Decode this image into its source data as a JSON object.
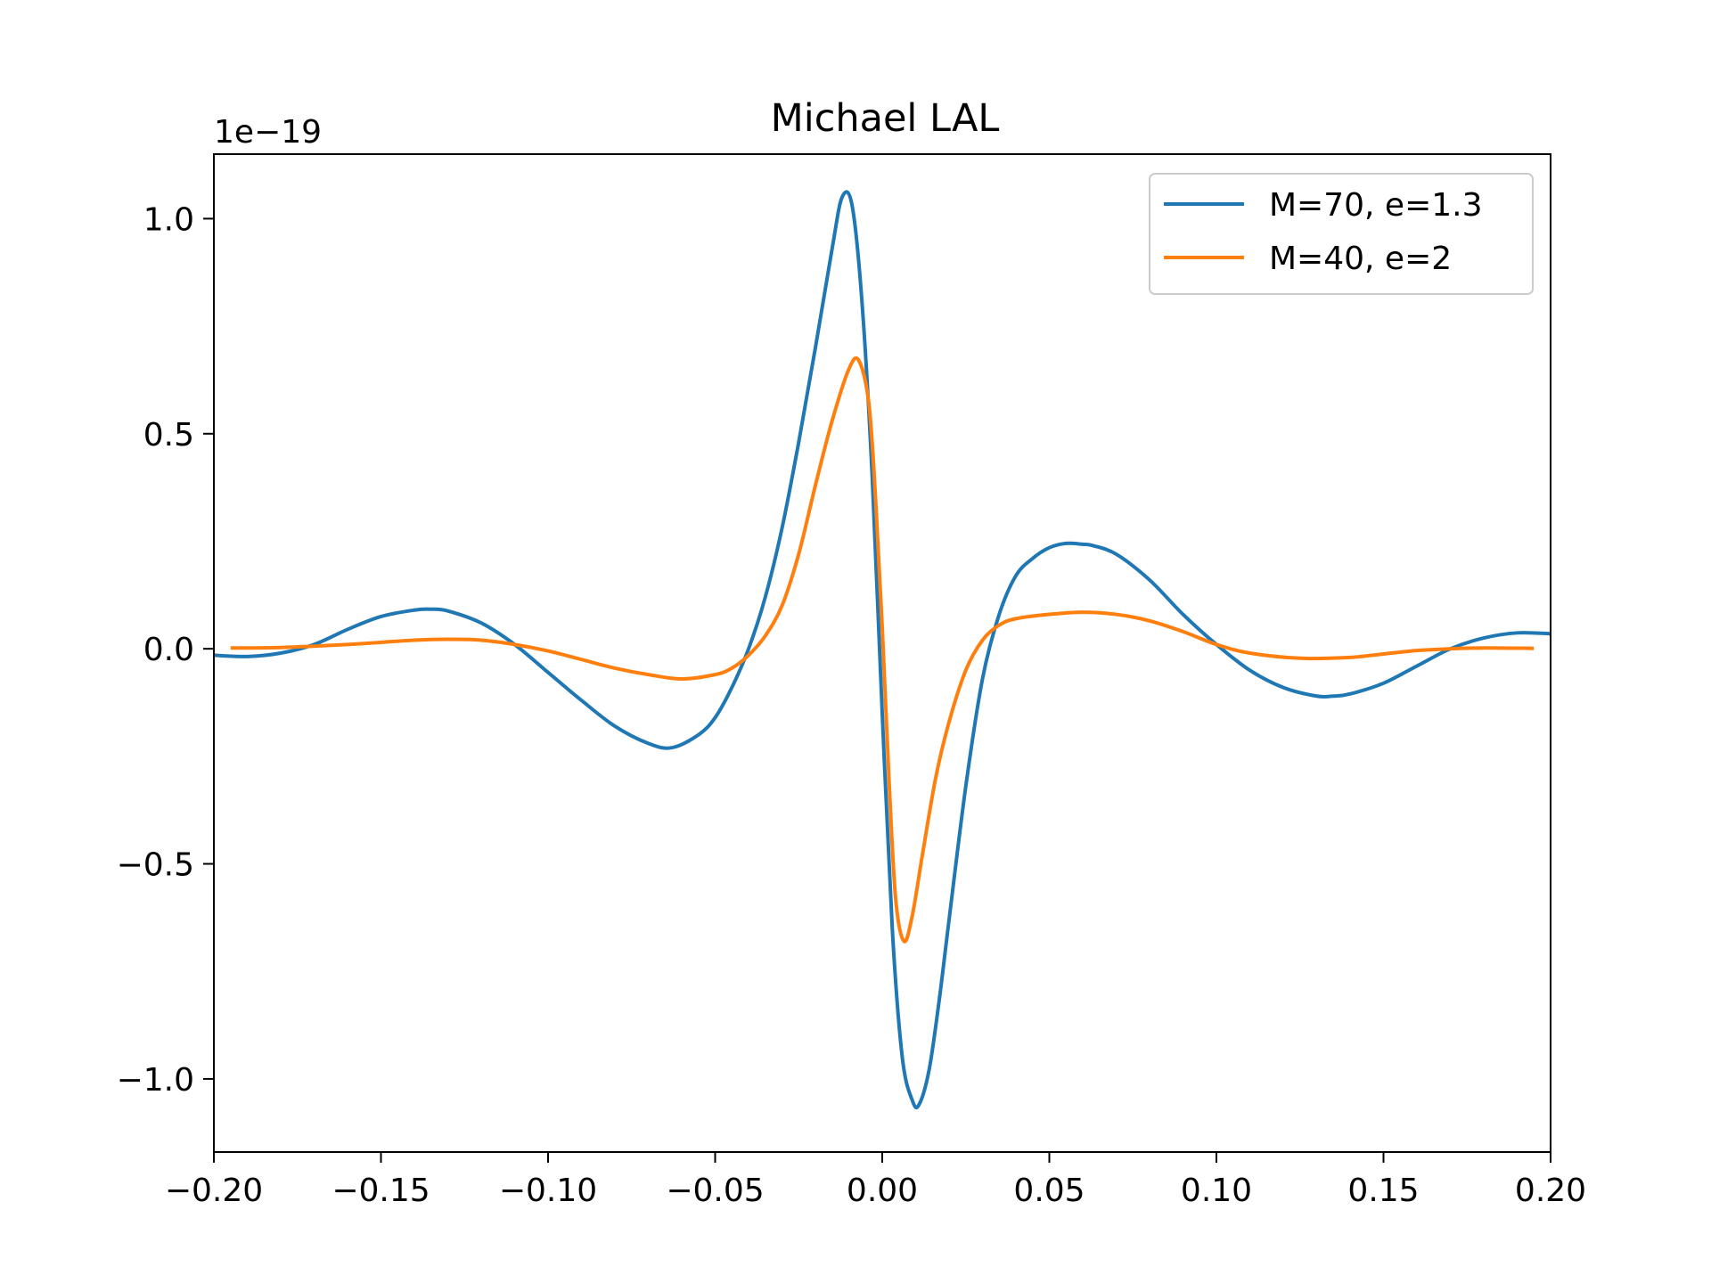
{
  "chart_data": {
    "type": "line",
    "title": "Michael LAL",
    "xlabel": "",
    "ylabel": "",
    "y_offset_label": "1e−19",
    "xlim": [
      -0.2,
      0.2
    ],
    "ylim": [
      -1.17,
      1.15
    ],
    "y_scale_factor": 1e-19,
    "x_ticks": [
      -0.2,
      -0.15,
      -0.1,
      -0.05,
      0.0,
      0.05,
      0.1,
      0.15,
      0.2
    ],
    "x_tick_labels": [
      "−0.20",
      "−0.15",
      "−0.10",
      "−0.05",
      "0.00",
      "0.05",
      "0.10",
      "0.15",
      "0.20"
    ],
    "y_ticks": [
      -1.0,
      -0.5,
      0.0,
      0.5,
      1.0
    ],
    "y_tick_labels": [
      "−1.0",
      "−0.5",
      "0.0",
      "0.5",
      "1.0"
    ],
    "grid": false,
    "legend_position": "top-right",
    "series": [
      {
        "name": "M=70, e=1.3",
        "color": "#1f77b4",
        "x": [
          -0.2,
          -0.19,
          -0.18,
          -0.17,
          -0.16,
          -0.15,
          -0.14,
          -0.135,
          -0.13,
          -0.12,
          -0.11,
          -0.1,
          -0.09,
          -0.08,
          -0.07,
          -0.063,
          -0.055,
          -0.05,
          -0.045,
          -0.04,
          -0.035,
          -0.03,
          -0.025,
          -0.02,
          -0.015,
          -0.012,
          -0.009,
          -0.006,
          -0.003,
          0.0,
          0.003,
          0.006,
          0.009,
          0.011,
          0.014,
          0.017,
          0.02,
          0.025,
          0.03,
          0.035,
          0.04,
          0.045,
          0.05,
          0.055,
          0.06,
          0.063,
          0.07,
          0.08,
          0.09,
          0.1,
          0.11,
          0.12,
          0.13,
          0.135,
          0.14,
          0.15,
          0.16,
          0.17,
          0.18,
          0.19,
          0.2
        ],
        "y": [
          -0.015,
          -0.018,
          -0.01,
          0.01,
          0.045,
          0.075,
          0.09,
          0.092,
          0.088,
          0.06,
          0.01,
          -0.055,
          -0.12,
          -0.18,
          -0.22,
          -0.23,
          -0.2,
          -0.16,
          -0.09,
          0.0,
          0.12,
          0.28,
          0.48,
          0.7,
          0.93,
          1.05,
          1.03,
          0.8,
          0.4,
          -0.15,
          -0.65,
          -0.95,
          -1.05,
          -1.06,
          -0.98,
          -0.82,
          -0.63,
          -0.32,
          -0.07,
          0.08,
          0.17,
          0.21,
          0.235,
          0.245,
          0.243,
          0.24,
          0.22,
          0.16,
          0.08,
          0.01,
          -0.05,
          -0.09,
          -0.11,
          -0.11,
          -0.105,
          -0.08,
          -0.04,
          0.0,
          0.025,
          0.037,
          0.035
        ]
      },
      {
        "name": "M=40, e=2",
        "color": "#ff7f0e",
        "x": [
          -0.195,
          -0.18,
          -0.16,
          -0.14,
          -0.13,
          -0.12,
          -0.11,
          -0.1,
          -0.09,
          -0.08,
          -0.07,
          -0.06,
          -0.05,
          -0.045,
          -0.04,
          -0.035,
          -0.03,
          -0.025,
          -0.02,
          -0.015,
          -0.01,
          -0.007,
          -0.004,
          -0.002,
          0.0,
          0.002,
          0.004,
          0.0065,
          0.009,
          0.012,
          0.016,
          0.02,
          0.025,
          0.03,
          0.035,
          0.04,
          0.05,
          0.06,
          0.07,
          0.08,
          0.09,
          0.1,
          0.11,
          0.125,
          0.14,
          0.15,
          0.16,
          0.17,
          0.18,
          0.195
        ],
        "y": [
          0.002,
          0.003,
          0.01,
          0.02,
          0.022,
          0.02,
          0.01,
          -0.005,
          -0.025,
          -0.045,
          -0.06,
          -0.07,
          -0.06,
          -0.045,
          -0.015,
          0.03,
          0.1,
          0.22,
          0.38,
          0.53,
          0.65,
          0.67,
          0.57,
          0.35,
          0.05,
          -0.3,
          -0.58,
          -0.68,
          -0.62,
          -0.48,
          -0.3,
          -0.17,
          -0.05,
          0.02,
          0.055,
          0.07,
          0.08,
          0.085,
          0.08,
          0.065,
          0.04,
          0.01,
          -0.01,
          -0.022,
          -0.02,
          -0.012,
          -0.004,
          0.0,
          0.002,
          0.001
        ]
      }
    ]
  }
}
